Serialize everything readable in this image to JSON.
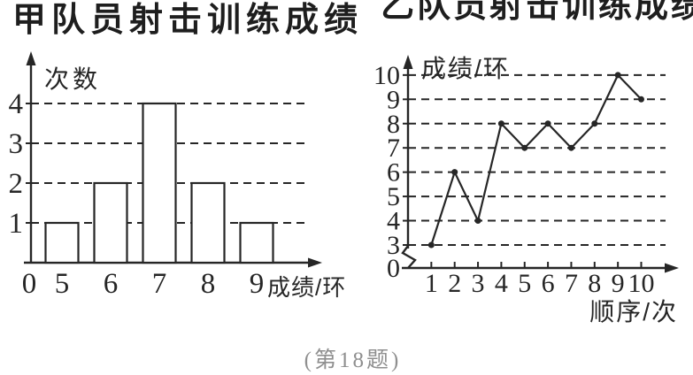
{
  "page": {
    "caption": "(第18题)"
  },
  "colors": {
    "ink": "#262626",
    "bar_fill": "#ffffff",
    "caption": "#8f8f8f"
  },
  "chart_data": [
    {
      "type": "bar",
      "title": "甲队员射击训练成绩",
      "ylabel": "次数",
      "xlabel": "成绩/环",
      "origin_label": "0",
      "categories": [
        5,
        6,
        7,
        8,
        9
      ],
      "values": [
        1,
        2,
        4,
        2,
        1
      ],
      "yticks": [
        1,
        2,
        3,
        4
      ],
      "ylim": [
        0,
        4
      ],
      "grid": "dashed-horizontal",
      "legend": "none"
    },
    {
      "type": "line",
      "title": "乙队员射击训练成绩",
      "ylabel": "成绩/环",
      "xlabel": "顺序/次",
      "origin_label": "0",
      "x": [
        1,
        2,
        3,
        4,
        5,
        6,
        7,
        8,
        9,
        10
      ],
      "values": [
        3,
        6,
        4,
        8,
        7,
        8,
        7,
        8,
        10,
        9
      ],
      "yticks": [
        3,
        4,
        5,
        6,
        7,
        8,
        9,
        10
      ],
      "ylim": [
        0,
        10
      ],
      "axis_break_between": [
        0,
        3
      ],
      "grid": "dashed-horizontal",
      "legend": "none"
    }
  ]
}
